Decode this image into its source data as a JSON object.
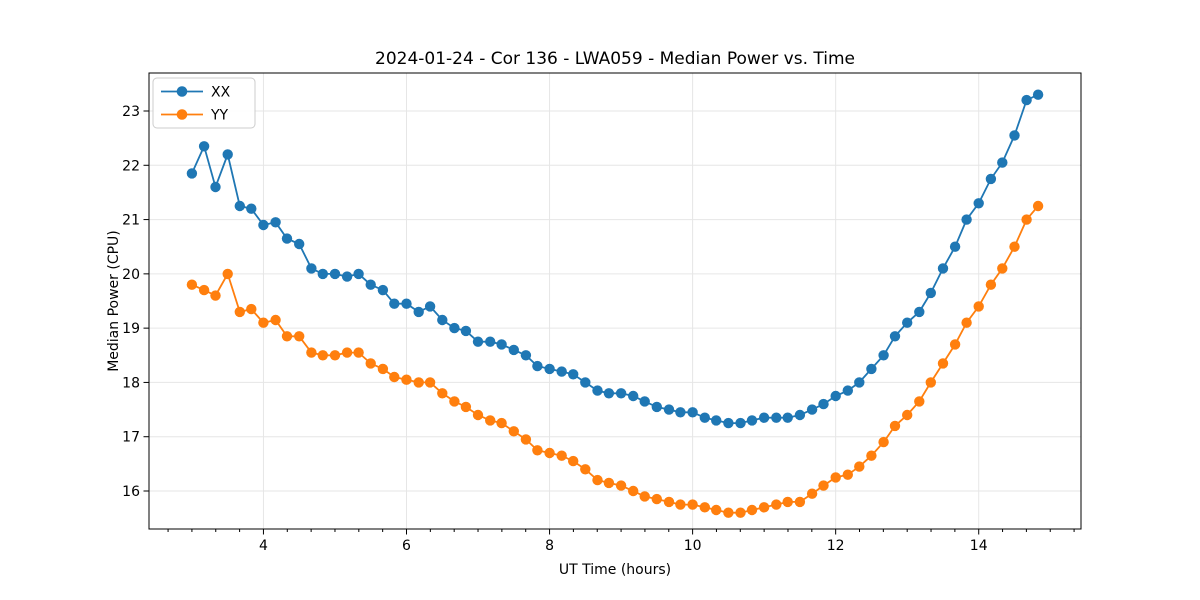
{
  "figure": {
    "background": "#ffffff",
    "grid_color": "#e6e6e6",
    "spine_color": "#000000"
  },
  "chart_data": {
    "type": "line",
    "title": "2024-01-24 - Cor 136 - LWA059 - Median Power vs. Time",
    "xlabel": "UT Time (hours)",
    "ylabel": "Median Power (CPU)",
    "xlim": [
      2.4,
      15.43
    ],
    "ylim": [
      15.3,
      23.7
    ],
    "x_ticks": [
      4,
      6,
      8,
      10,
      12,
      14
    ],
    "x_minor_tick_step": 0.33333,
    "y_ticks": [
      16,
      17,
      18,
      19,
      20,
      21,
      22,
      23
    ],
    "grid": true,
    "legend_position": "upper left",
    "marker": "circle",
    "x": [
      3.0,
      3.17,
      3.33,
      3.5,
      3.67,
      3.83,
      4.0,
      4.17,
      4.33,
      4.5,
      4.67,
      4.83,
      5.0,
      5.17,
      5.33,
      5.5,
      5.67,
      5.83,
      6.0,
      6.17,
      6.33,
      6.5,
      6.67,
      6.83,
      7.0,
      7.17,
      7.33,
      7.5,
      7.67,
      7.83,
      8.0,
      8.17,
      8.33,
      8.5,
      8.67,
      8.83,
      9.0,
      9.17,
      9.33,
      9.5,
      9.67,
      9.83,
      10.0,
      10.17,
      10.33,
      10.5,
      10.67,
      10.83,
      11.0,
      11.17,
      11.33,
      11.5,
      11.67,
      11.83,
      12.0,
      12.17,
      12.33,
      12.5,
      12.67,
      12.83,
      13.0,
      13.17,
      13.33,
      13.5,
      13.67,
      13.83,
      14.0,
      14.17,
      14.33,
      14.5,
      14.67,
      14.83
    ],
    "series": [
      {
        "name": "XX",
        "color": "#1f77b4",
        "values": [
          21.85,
          22.35,
          21.6,
          22.2,
          21.25,
          21.2,
          20.9,
          20.95,
          20.65,
          20.55,
          20.1,
          20.0,
          20.0,
          19.95,
          20.0,
          19.8,
          19.7,
          19.45,
          19.45,
          19.3,
          19.4,
          19.15,
          19.0,
          18.95,
          18.75,
          18.75,
          18.7,
          18.6,
          18.5,
          18.3,
          18.25,
          18.2,
          18.15,
          18.0,
          17.85,
          17.8,
          17.8,
          17.75,
          17.65,
          17.55,
          17.5,
          17.45,
          17.45,
          17.35,
          17.3,
          17.25,
          17.25,
          17.3,
          17.35,
          17.35,
          17.35,
          17.4,
          17.5,
          17.6,
          17.75,
          17.85,
          18.0,
          18.25,
          18.5,
          18.85,
          19.1,
          19.3,
          19.65,
          20.1,
          20.5,
          21.0,
          21.3,
          21.75,
          22.05,
          22.55,
          23.2,
          23.3
        ]
      },
      {
        "name": "YY",
        "color": "#ff7f0e",
        "values": [
          19.8,
          19.7,
          19.6,
          20.0,
          19.3,
          19.35,
          19.1,
          19.15,
          18.85,
          18.85,
          18.55,
          18.5,
          18.5,
          18.55,
          18.55,
          18.35,
          18.25,
          18.1,
          18.05,
          18.0,
          18.0,
          17.8,
          17.65,
          17.55,
          17.4,
          17.3,
          17.25,
          17.1,
          16.95,
          16.75,
          16.7,
          16.65,
          16.55,
          16.4,
          16.2,
          16.15,
          16.1,
          16.0,
          15.9,
          15.85,
          15.8,
          15.75,
          15.75,
          15.7,
          15.65,
          15.6,
          15.6,
          15.65,
          15.7,
          15.75,
          15.8,
          15.8,
          15.95,
          16.1,
          16.25,
          16.3,
          16.45,
          16.65,
          16.9,
          17.2,
          17.4,
          17.65,
          18.0,
          18.35,
          18.7,
          19.1,
          19.4,
          19.8,
          20.1,
          20.5,
          21.0,
          21.25
        ]
      }
    ]
  }
}
